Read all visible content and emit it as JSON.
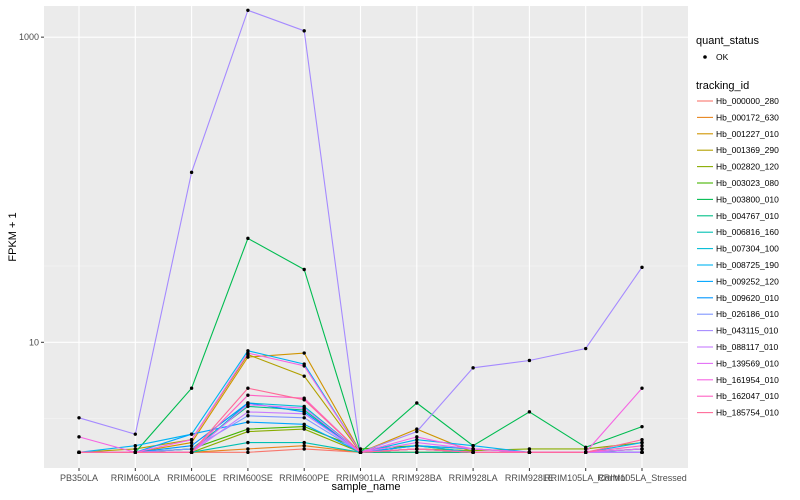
{
  "chart_data": {
    "type": "line",
    "xlabel": "sample_name",
    "ylabel": "FPKM + 1",
    "y_scale": "log10",
    "ylim": [
      1.5,
      1600
    ],
    "y_ticks": [
      {
        "value": 10,
        "label": "10"
      },
      {
        "value": 1000,
        "label": "1000"
      }
    ],
    "grid": true,
    "legend_position": "right",
    "categories": [
      "PB350LA",
      "RRIM600LA",
      "RRIM600LE",
      "RRIM600SE",
      "RRIM600PE",
      "RRIM901LA",
      "RRIM928BA",
      "RRIM928LA",
      "RRIM928LE",
      "RRIM105LA_Control",
      "RRIM105LA_Stressed"
    ],
    "quant_legend": {
      "title": "quant_status",
      "items": [
        "OK"
      ]
    },
    "tracking_legend_title": "tracking_id",
    "series": [
      {
        "name": "Hb_000000_280",
        "color": "#F8766D",
        "values": [
          1.9,
          1.9,
          1.9,
          1.9,
          2.0,
          1.9,
          1.9,
          1.9,
          1.9,
          1.9,
          1.9
        ]
      },
      {
        "name": "Hb_000172_630",
        "color": "#E7851E",
        "values": [
          1.9,
          1.9,
          1.9,
          2.0,
          2.1,
          1.9,
          1.9,
          1.9,
          1.9,
          1.9,
          1.9
        ]
      },
      {
        "name": "Hb_001227_010",
        "color": "#D09400",
        "values": [
          1.9,
          1.9,
          2.2,
          8.0,
          8.5,
          1.9,
          2.7,
          1.9,
          1.9,
          1.9,
          1.9
        ]
      },
      {
        "name": "Hb_001369_290",
        "color": "#B2A100",
        "values": [
          1.9,
          2.0,
          2.3,
          8.3,
          6.0,
          1.9,
          2.1,
          2.0,
          1.9,
          1.9,
          1.9
        ]
      },
      {
        "name": "Hb_002820_120",
        "color": "#89AC00",
        "values": [
          1.9,
          1.9,
          1.9,
          2.6,
          2.7,
          1.9,
          2.0,
          1.95,
          2.0,
          2.0,
          2.2
        ]
      },
      {
        "name": "Hb_003023_080",
        "color": "#45B500",
        "values": [
          1.9,
          1.9,
          2.0,
          2.7,
          2.8,
          2.0,
          2.1,
          1.9,
          1.9,
          1.9,
          2.0
        ]
      },
      {
        "name": "Hb_003800_010",
        "color": "#00BC51",
        "values": [
          1.9,
          1.9,
          5.0,
          48.0,
          30.0,
          1.9,
          4.0,
          2.1,
          3.5,
          2.05,
          2.8
        ]
      },
      {
        "name": "Hb_004767_010",
        "color": "#00C087",
        "values": [
          1.9,
          1.9,
          2.0,
          3.8,
          3.6,
          1.9,
          1.9,
          1.9,
          1.9,
          1.9,
          1.9
        ]
      },
      {
        "name": "Hb_006816_160",
        "color": "#00C0B2",
        "values": [
          1.9,
          1.9,
          1.9,
          2.2,
          2.2,
          1.9,
          2.0,
          1.9,
          1.9,
          1.9,
          2.0
        ]
      },
      {
        "name": "Hb_007304_100",
        "color": "#00BCD6",
        "values": [
          1.9,
          1.9,
          1.9,
          4.0,
          3.8,
          1.9,
          2.1,
          1.9,
          1.9,
          1.9,
          1.9
        ]
      },
      {
        "name": "Hb_008725_190",
        "color": "#00B3F2",
        "values": [
          1.9,
          2.1,
          2.5,
          8.8,
          7.2,
          1.9,
          2.3,
          2.1,
          1.9,
          1.9,
          2.2
        ]
      },
      {
        "name": "Hb_009252_120",
        "color": "#00A6FF",
        "values": [
          1.9,
          1.9,
          2.5,
          3.0,
          2.9,
          1.9,
          2.1,
          2.0,
          1.9,
          1.9,
          1.9
        ]
      },
      {
        "name": "Hb_009620_010",
        "color": "#0095FF",
        "values": [
          1.9,
          1.9,
          2.1,
          4.0,
          3.5,
          1.9,
          2.0,
          1.9,
          1.9,
          1.9,
          1.9
        ]
      },
      {
        "name": "Hb_026186_010",
        "color": "#7F96FF",
        "values": [
          1.9,
          1.9,
          2.0,
          3.3,
          3.2,
          1.9,
          2.0,
          1.9,
          1.9,
          1.9,
          1.9
        ]
      },
      {
        "name": "Hb_043115_010",
        "color": "#A58AFF",
        "values": [
          3.2,
          2.5,
          130.0,
          1500.0,
          1100.0,
          1.9,
          2.6,
          6.8,
          7.6,
          9.1,
          31.0
        ]
      },
      {
        "name": "Hb_088117_010",
        "color": "#C77CFF",
        "values": [
          1.9,
          1.9,
          1.9,
          3.5,
          3.4,
          1.9,
          2.0,
          1.9,
          1.9,
          1.9,
          1.9
        ]
      },
      {
        "name": "Hb_139569_010",
        "color": "#E36EF6",
        "values": [
          1.9,
          1.9,
          1.9,
          3.9,
          3.7,
          1.9,
          2.2,
          2.0,
          1.9,
          1.9,
          2.0
        ]
      },
      {
        "name": "Hb_161954_010",
        "color": "#F564E3",
        "values": [
          2.4,
          1.9,
          2.3,
          8.5,
          7.0,
          1.9,
          2.4,
          2.0,
          1.9,
          1.9,
          5.0
        ]
      },
      {
        "name": "Hb_162047_010",
        "color": "#FF61C3",
        "values": [
          1.9,
          1.9,
          1.9,
          4.5,
          4.3,
          1.9,
          2.0,
          1.9,
          1.9,
          1.9,
          2.1
        ]
      },
      {
        "name": "Hb_185754_010",
        "color": "#FF6A98",
        "values": [
          1.9,
          1.9,
          1.9,
          5.0,
          4.2,
          1.9,
          2.0,
          1.9,
          1.9,
          1.9,
          2.3
        ]
      }
    ]
  }
}
